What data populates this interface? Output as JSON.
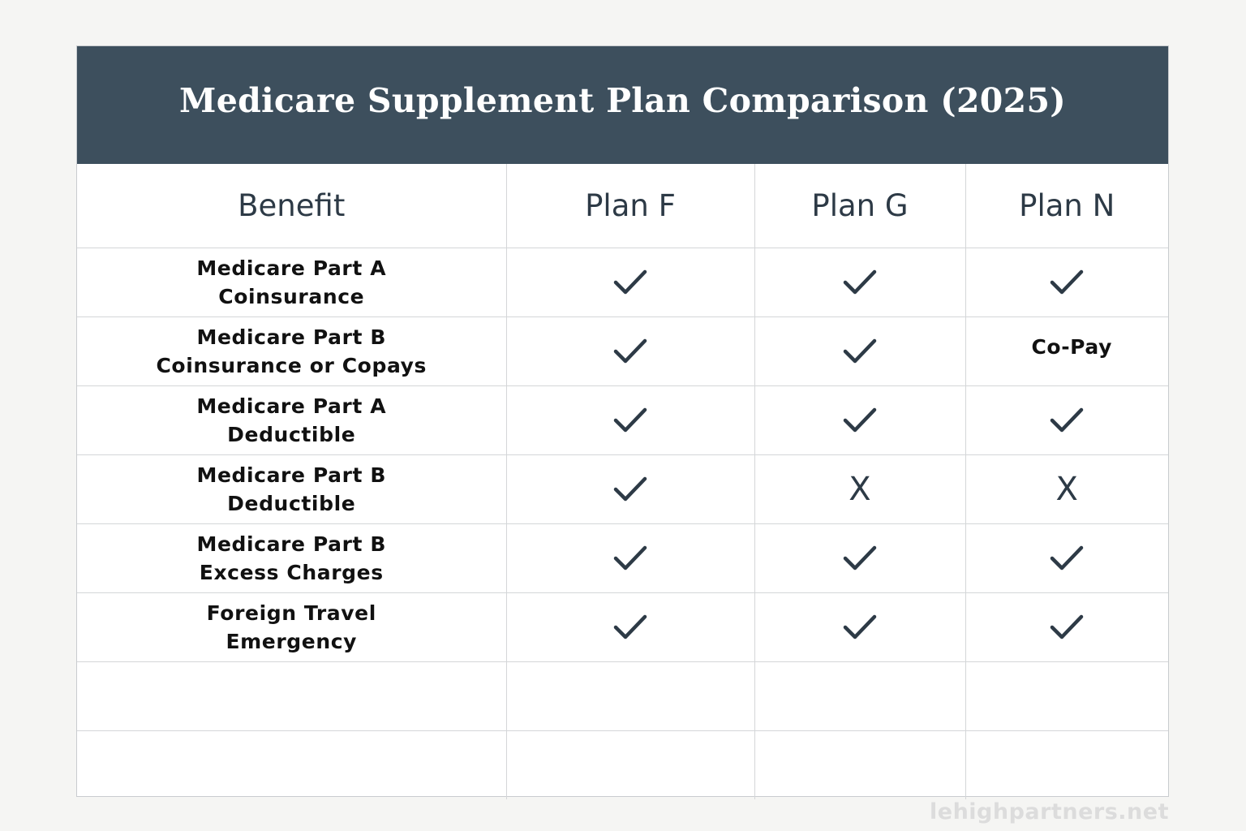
{
  "title": "Medicare Supplement Plan Comparison (2025)",
  "headers": {
    "benefit": "Benefit",
    "plan_f": "Plan F",
    "plan_g": "Plan G",
    "plan_n": "Plan N"
  },
  "rows": [
    {
      "benefit_line1": "Medicare Part A",
      "benefit_line2": "Coinsurance",
      "f": "check",
      "g": "check",
      "n": "check"
    },
    {
      "benefit_line1": "Medicare Part B",
      "benefit_line2": "Coinsurance or Copays",
      "f": "check",
      "g": "check",
      "n": "Co-Pay"
    },
    {
      "benefit_line1": "Medicare Part A",
      "benefit_line2": "Deductible",
      "f": "check",
      "g": "check",
      "n": "check"
    },
    {
      "benefit_line1": "Medicare Part B",
      "benefit_line2": "Deductible",
      "f": "check",
      "g": "X",
      "n": "X"
    },
    {
      "benefit_line1": "Medicare Part B",
      "benefit_line2": "Excess Charges",
      "f": "check",
      "g": "check",
      "n": "check"
    },
    {
      "benefit_line1": "Foreign Travel",
      "benefit_line2": "Emergency",
      "f": "check",
      "g": "check",
      "n": "check"
    }
  ],
  "icons": {
    "check": "checkmark-icon",
    "x": "x-mark-icon"
  },
  "colors": {
    "header_bg": "#3d4f5d",
    "mark": "#2d3a46"
  },
  "watermark": "lehighpartners.net"
}
